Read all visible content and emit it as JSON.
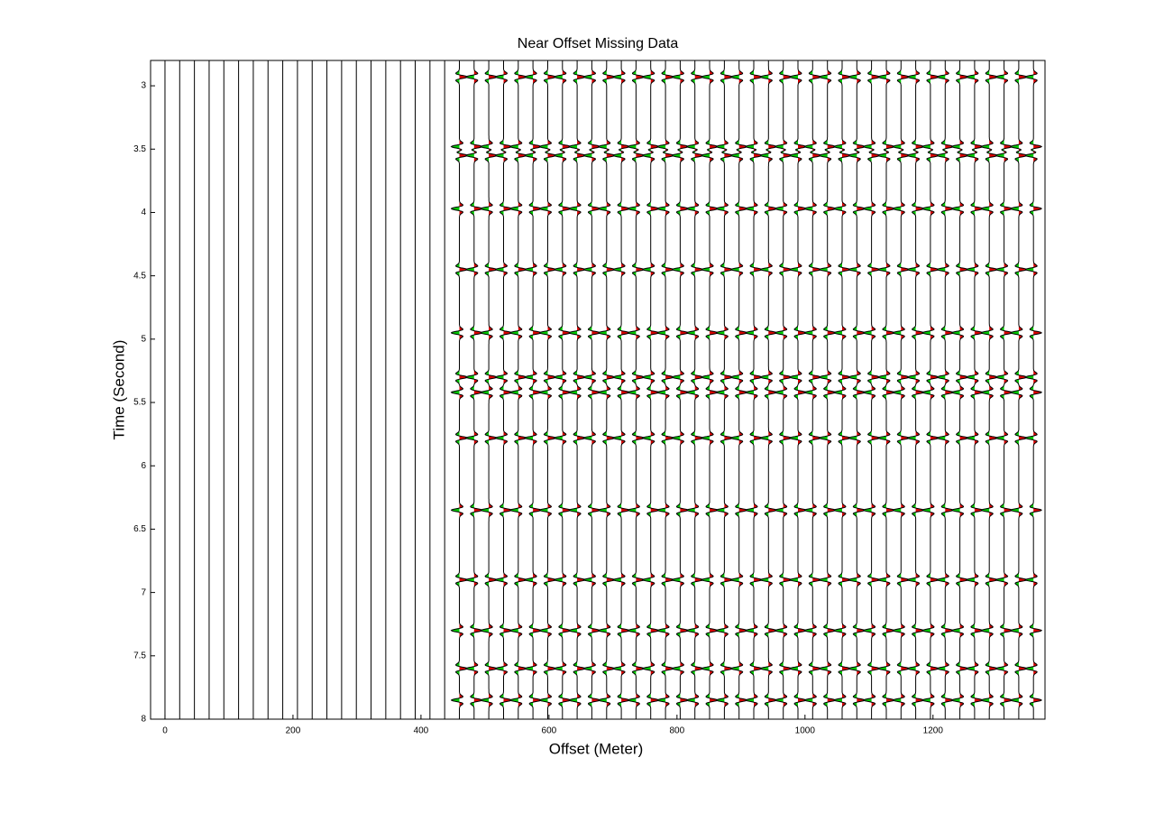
{
  "chart_data": {
    "type": "wiggle",
    "title": "Near Offset Missing Data",
    "xlabel": "Offset (Meter)",
    "ylabel": "Time (Second)",
    "xlim": [
      -22.5,
      1375
    ],
    "ylim": [
      2.8,
      8
    ],
    "xticks": [
      0,
      200,
      400,
      600,
      800,
      1000,
      1200
    ],
    "yticks": [
      3,
      3.5,
      4,
      4.5,
      5,
      5.5,
      6,
      6.5,
      7,
      7.5,
      8
    ],
    "x_missing": [
      0,
      23,
      46,
      69,
      92,
      115,
      138,
      161,
      184,
      207,
      230,
      253,
      276,
      299,
      322,
      345,
      368,
      391,
      414,
      437
    ],
    "x_recorded": [
      460,
      483,
      506,
      529,
      552,
      575,
      598,
      621,
      644,
      667,
      690,
      713,
      736,
      759,
      782,
      805,
      828,
      851,
      874,
      897,
      920,
      943,
      966,
      989,
      1012,
      1035,
      1058,
      1081,
      1104,
      1127,
      1150,
      1173,
      1196,
      1219,
      1242,
      1265,
      1288,
      1311,
      1334,
      1357
    ],
    "event_times": [
      2.93,
      3.48,
      3.55,
      3.97,
      4.45,
      4.95,
      5.3,
      5.42,
      5.78,
      6.35,
      6.9,
      7.3,
      7.6,
      7.85
    ],
    "positive_color": "#dd0000",
    "negative_color": "#00cc00",
    "trace_color": "#000000"
  }
}
